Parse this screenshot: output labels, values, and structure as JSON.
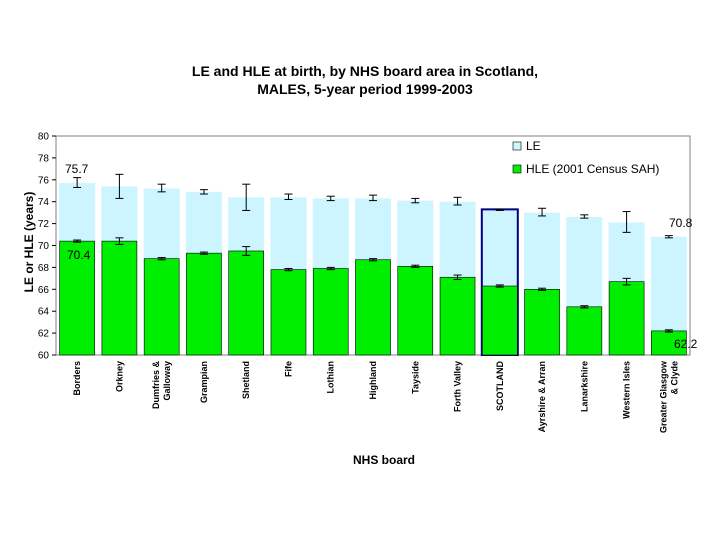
{
  "chart_data": {
    "type": "bar",
    "title_line1": "LE and HLE at birth, by NHS board area in Scotland,",
    "title_line2": "MALES, 5-year period 1999-2003",
    "xlabel": "NHS board",
    "ylabel": "LE or HLE (years)",
    "ylim": [
      60,
      80
    ],
    "yticks": [
      60,
      62,
      64,
      66,
      68,
      70,
      72,
      74,
      76,
      78,
      80
    ],
    "grid": false,
    "legend_position": "top-right",
    "categories": [
      "Borders",
      "Orkney",
      "Dumfries & Galloway",
      "Grampian",
      "Shetland",
      "Fife",
      "Lothian",
      "Highland",
      "Tayside",
      "Forth Valley",
      "SCOTLAND",
      "Ayrshire & Arran",
      "Lanarkshire",
      "Western Isles",
      "Greater Glasgow & Clyde"
    ],
    "category_lines": [
      [
        "Borders"
      ],
      [
        "Orkney"
      ],
      [
        "Dumfries &",
        "Galloway"
      ],
      [
        "Grampian"
      ],
      [
        "Shetland"
      ],
      [
        "Fife"
      ],
      [
        "Lothian"
      ],
      [
        "Highland"
      ],
      [
        "Tayside"
      ],
      [
        "Forth Valley"
      ],
      [
        "SCOTLAND"
      ],
      [
        "Ayrshire & Arran"
      ],
      [
        "Lanarkshire"
      ],
      [
        "Western Isles"
      ],
      [
        "Greater Glasgow",
        "& Clyde"
      ]
    ],
    "highlight_category": "SCOTLAND",
    "series": [
      {
        "name": "LE",
        "color": "#ccf5ff",
        "values": [
          75.7,
          75.4,
          75.2,
          74.9,
          74.4,
          74.4,
          74.3,
          74.3,
          74.1,
          74.0,
          73.3,
          73.0,
          72.6,
          72.1,
          70.8
        ],
        "err_low": [
          75.3,
          74.3,
          74.9,
          74.7,
          73.2,
          74.2,
          74.1,
          74.1,
          73.9,
          73.7,
          73.2,
          72.7,
          72.5,
          71.2,
          70.7
        ],
        "err_high": [
          76.2,
          76.5,
          75.6,
          75.1,
          75.6,
          74.7,
          74.5,
          74.6,
          74.3,
          74.4,
          73.3,
          73.4,
          72.8,
          73.1,
          70.9
        ]
      },
      {
        "name": "HLE (2001 Census SAH)",
        "color": "#00ee00",
        "values": [
          70.4,
          70.4,
          68.8,
          69.3,
          69.5,
          67.8,
          67.9,
          68.7,
          68.1,
          67.1,
          66.3,
          66.0,
          64.4,
          66.7,
          62.2
        ],
        "err_low": [
          70.3,
          70.1,
          68.7,
          69.2,
          69.1,
          67.7,
          67.8,
          68.6,
          68.0,
          66.9,
          66.2,
          65.9,
          64.3,
          66.4,
          62.1
        ],
        "err_high": [
          70.5,
          70.7,
          68.9,
          69.4,
          69.9,
          67.9,
          68.0,
          68.8,
          68.2,
          67.3,
          66.4,
          66.1,
          64.5,
          67.0,
          62.3
        ]
      }
    ],
    "annotations": [
      "75.7",
      "70.4",
      "70.8",
      "62.2"
    ]
  }
}
